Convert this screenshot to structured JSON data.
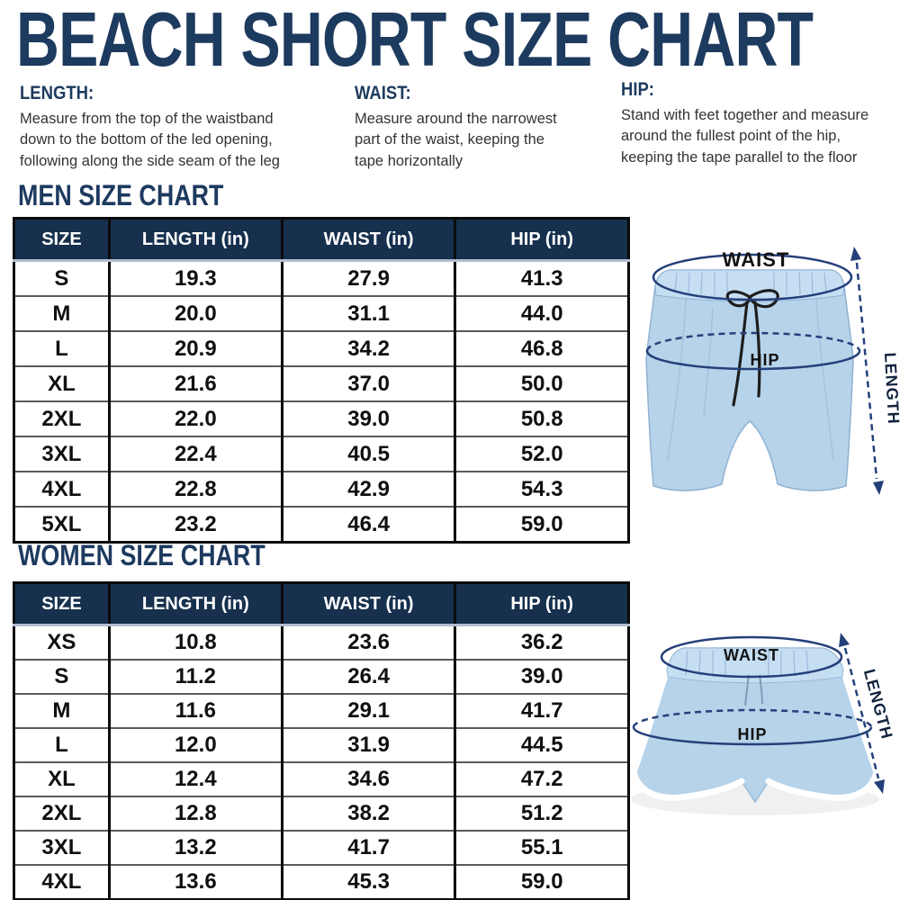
{
  "title": "BEACH SHORT SIZE CHART",
  "instructions": [
    {
      "label": "LENGTH:",
      "text": "Measure from the top of the waistband\ndown to the bottom of the led opening,\nfollowing along the side seam of the leg"
    },
    {
      "label": "WAIST:",
      "text": "Measure around the narrowest\npart of the waist, keeping the\ntape horizontally"
    },
    {
      "label": "HIP:",
      "text": "Stand with feet together and measure\naround the fullest point of the hip,\nkeeping the tape parallel to the floor"
    }
  ],
  "men_chart": {
    "heading": "MEN SIZE CHART",
    "columns": [
      "SIZE",
      "LENGTH (in)",
      "WAIST (in)",
      "HIP (in)"
    ],
    "rows": [
      {
        "size": "S",
        "length_in": "19.3",
        "waist_in": "27.9",
        "hip_in": "41.3"
      },
      {
        "size": "M",
        "length_in": "20.0",
        "waist_in": "31.1",
        "hip_in": "44.0"
      },
      {
        "size": "L",
        "length_in": "20.9",
        "waist_in": "34.2",
        "hip_in": "46.8"
      },
      {
        "size": "XL",
        "length_in": "21.6",
        "waist_in": "37.0",
        "hip_in": "50.0"
      },
      {
        "size": "2XL",
        "length_in": "22.0",
        "waist_in": "39.0",
        "hip_in": "50.8"
      },
      {
        "size": "3XL",
        "length_in": "22.4",
        "waist_in": "40.5",
        "hip_in": "52.0"
      },
      {
        "size": "4XL",
        "length_in": "22.8",
        "waist_in": "42.9",
        "hip_in": "54.3"
      },
      {
        "size": "5XL",
        "length_in": "23.2",
        "waist_in": "46.4",
        "hip_in": "59.0"
      }
    ]
  },
  "women_chart": {
    "heading": "WOMEN SIZE CHART",
    "columns": [
      "SIZE",
      "LENGTH (in)",
      "WAIST (in)",
      "HIP (in)"
    ],
    "rows": [
      {
        "size": "XS",
        "length_in": "10.8",
        "waist_in": "23.6",
        "hip_in": "36.2"
      },
      {
        "size": "S",
        "length_in": "11.2",
        "waist_in": "26.4",
        "hip_in": "39.0"
      },
      {
        "size": "M",
        "length_in": "11.6",
        "waist_in": "29.1",
        "hip_in": "41.7"
      },
      {
        "size": "L",
        "length_in": "12.0",
        "waist_in": "31.9",
        "hip_in": "44.5"
      },
      {
        "size": "XL",
        "length_in": "12.4",
        "waist_in": "34.6",
        "hip_in": "47.2"
      },
      {
        "size": "2XL",
        "length_in": "12.8",
        "waist_in": "38.2",
        "hip_in": "51.2"
      },
      {
        "size": "3XL",
        "length_in": "13.2",
        "waist_in": "41.7",
        "hip_in": "55.1"
      },
      {
        "size": "4XL",
        "length_in": "13.6",
        "waist_in": "45.3",
        "hip_in": "59.0"
      }
    ]
  },
  "diagrams": {
    "men": {
      "waist_label": "WAIST",
      "hip_label": "HIP",
      "length_label": "LENGTH"
    },
    "women": {
      "waist_label": "WAIST",
      "hip_label": "HIP",
      "length_label": "LENGTH"
    }
  },
  "colors": {
    "navy_heading": "#1d3a5f",
    "table_header_bg": "#16304d",
    "table_header_text": "#ffffff",
    "body_text": "#333333",
    "shorts_blue": "#b6d3ea",
    "waistband_blue": "#c6def2",
    "measure_line_navy": "#24407a",
    "drawstring_black": "#1d1d1d",
    "trim_white": "#ffffff"
  }
}
